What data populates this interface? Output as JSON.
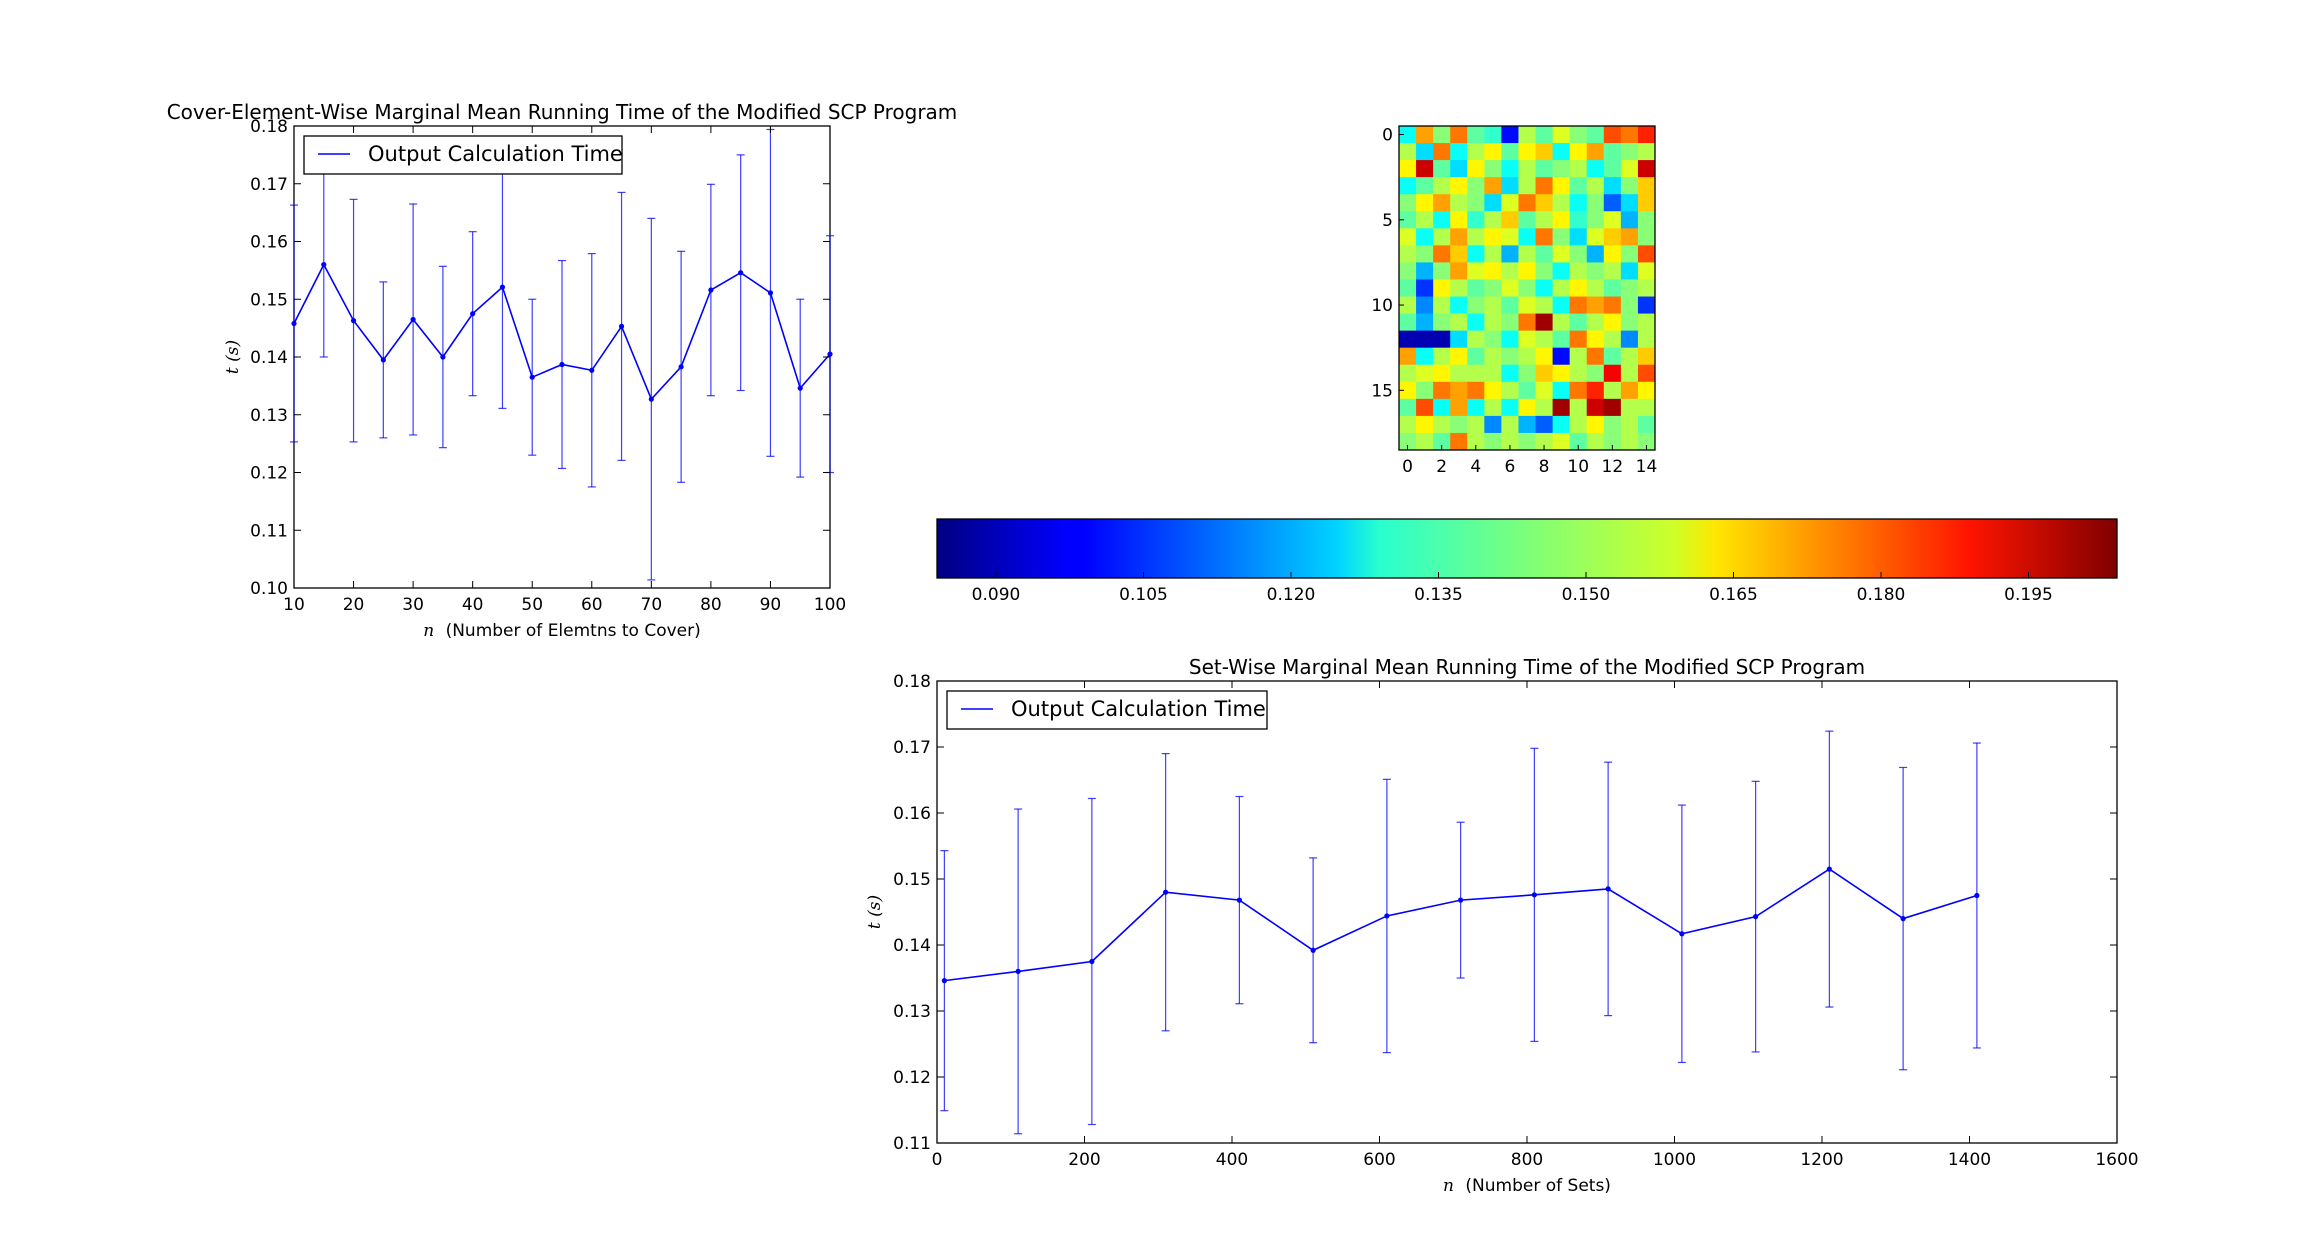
{
  "chart_data": [
    {
      "type": "line",
      "title": "Cover-Element-Wise Marginal Mean Running Time of the Modified SCP Program",
      "xlabel_var": "n",
      "xlabel": "(Number of Elemtns to Cover)",
      "ylabel": "t (s)",
      "xlim": [
        10,
        100
      ],
      "ylim": [
        0.1,
        0.18
      ],
      "xticks": [
        "10",
        "20",
        "30",
        "40",
        "50",
        "60",
        "70",
        "80",
        "90",
        "100"
      ],
      "yticks": [
        "0.10",
        "0.11",
        "0.12",
        "0.13",
        "0.14",
        "0.15",
        "0.16",
        "0.17",
        "0.18"
      ],
      "legend": "top-left",
      "series": [
        {
          "name": "Output Calculation Time",
          "color": "#0000ff",
          "x": [
            10,
            15,
            20,
            25,
            30,
            35,
            40,
            45,
            50,
            55,
            60,
            65,
            70,
            75,
            80,
            85,
            90,
            95,
            100
          ],
          "y": [
            0.1458,
            0.156,
            0.1463,
            0.1395,
            0.1465,
            0.14,
            0.1475,
            0.1521,
            0.1365,
            0.1387,
            0.1377,
            0.1453,
            0.1327,
            0.1383,
            0.1516,
            0.1546,
            0.1511,
            0.1346,
            0.1405
          ],
          "yerr": [
            0.0205,
            0.016,
            0.021,
            0.0135,
            0.02,
            0.0157,
            0.0142,
            0.021,
            0.0135,
            0.018,
            0.0202,
            0.0232,
            0.0313,
            0.02,
            0.0183,
            0.0204,
            0.0283,
            0.0154,
            0.0205
          ]
        }
      ]
    },
    {
      "type": "heatmap",
      "xticks": [
        "0",
        "2",
        "4",
        "6",
        "8",
        "10",
        "12",
        "14"
      ],
      "yticks": [
        "0",
        "5",
        "10",
        "15"
      ],
      "rows": 19,
      "cols": 15,
      "colormap": "jet",
      "vmin": 0.084,
      "vmax": 0.204,
      "colorbar_ticks": [
        "0.090",
        "0.105",
        "0.120",
        "0.135",
        "0.150",
        "0.165",
        "0.180",
        "0.195"
      ],
      "values": [
        [
          0.13,
          0.17,
          0.145,
          0.175,
          0.14,
          0.135,
          0.1,
          0.15,
          0.14,
          0.155,
          0.145,
          0.14,
          0.18,
          0.175,
          0.185
        ],
        [
          0.15,
          0.125,
          0.175,
          0.13,
          0.15,
          0.16,
          0.14,
          0.16,
          0.165,
          0.13,
          0.16,
          0.17,
          0.14,
          0.145,
          0.15
        ],
        [
          0.16,
          0.195,
          0.14,
          0.125,
          0.16,
          0.145,
          0.13,
          0.15,
          0.14,
          0.145,
          0.15,
          0.13,
          0.14,
          0.155,
          0.195
        ],
        [
          0.13,
          0.14,
          0.15,
          0.16,
          0.145,
          0.17,
          0.125,
          0.15,
          0.175,
          0.16,
          0.14,
          0.15,
          0.125,
          0.145,
          0.165
        ],
        [
          0.145,
          0.16,
          0.17,
          0.15,
          0.145,
          0.125,
          0.155,
          0.175,
          0.165,
          0.15,
          0.13,
          0.145,
          0.11,
          0.125,
          0.165
        ],
        [
          0.14,
          0.15,
          0.13,
          0.16,
          0.135,
          0.15,
          0.165,
          0.14,
          0.15,
          0.16,
          0.135,
          0.145,
          0.155,
          0.12,
          0.145
        ],
        [
          0.155,
          0.13,
          0.15,
          0.17,
          0.15,
          0.16,
          0.155,
          0.13,
          0.175,
          0.145,
          0.125,
          0.155,
          0.165,
          0.17,
          0.145
        ],
        [
          0.15,
          0.145,
          0.175,
          0.165,
          0.13,
          0.15,
          0.12,
          0.15,
          0.14,
          0.155,
          0.145,
          0.12,
          0.16,
          0.145,
          0.18
        ],
        [
          0.145,
          0.12,
          0.145,
          0.17,
          0.155,
          0.16,
          0.15,
          0.16,
          0.145,
          0.13,
          0.15,
          0.145,
          0.15,
          0.125,
          0.155
        ],
        [
          0.14,
          0.105,
          0.16,
          0.15,
          0.14,
          0.145,
          0.155,
          0.145,
          0.13,
          0.15,
          0.16,
          0.15,
          0.14,
          0.145,
          0.15
        ],
        [
          0.15,
          0.115,
          0.15,
          0.13,
          0.145,
          0.15,
          0.14,
          0.155,
          0.15,
          0.13,
          0.175,
          0.17,
          0.175,
          0.145,
          0.105
        ],
        [
          0.14,
          0.12,
          0.145,
          0.15,
          0.13,
          0.15,
          0.145,
          0.175,
          0.2,
          0.15,
          0.14,
          0.15,
          0.16,
          0.145,
          0.15
        ],
        [
          0.09,
          0.09,
          0.09,
          0.125,
          0.15,
          0.145,
          0.13,
          0.155,
          0.15,
          0.14,
          0.175,
          0.16,
          0.15,
          0.115,
          0.15
        ],
        [
          0.17,
          0.13,
          0.15,
          0.16,
          0.14,
          0.15,
          0.145,
          0.15,
          0.16,
          0.1,
          0.15,
          0.175,
          0.14,
          0.15,
          0.165
        ],
        [
          0.15,
          0.155,
          0.16,
          0.15,
          0.15,
          0.15,
          0.13,
          0.145,
          0.165,
          0.16,
          0.15,
          0.145,
          0.19,
          0.15,
          0.18
        ],
        [
          0.16,
          0.145,
          0.175,
          0.17,
          0.175,
          0.16,
          0.15,
          0.14,
          0.155,
          0.13,
          0.175,
          0.185,
          0.15,
          0.17,
          0.16
        ],
        [
          0.14,
          0.18,
          0.13,
          0.17,
          0.13,
          0.15,
          0.13,
          0.16,
          0.15,
          0.2,
          0.15,
          0.195,
          0.2,
          0.15,
          0.15
        ],
        [
          0.15,
          0.16,
          0.15,
          0.145,
          0.15,
          0.115,
          0.15,
          0.12,
          0.11,
          0.13,
          0.15,
          0.16,
          0.145,
          0.15,
          0.14
        ],
        [
          0.145,
          0.15,
          0.14,
          0.175,
          0.15,
          0.145,
          0.15,
          0.145,
          0.15,
          0.155,
          0.14,
          0.15,
          0.145,
          0.15,
          0.145
        ]
      ]
    },
    {
      "type": "line",
      "title": "Set-Wise Marginal Mean Running Time of the Modified SCP Program",
      "xlabel_var": "n",
      "xlabel": "(Number of Sets)",
      "ylabel": "t (s)",
      "xlim": [
        0,
        1600
      ],
      "ylim": [
        0.11,
        0.18
      ],
      "xticks": [
        "0",
        "200",
        "400",
        "600",
        "800",
        "1000",
        "1200",
        "1400",
        "1600"
      ],
      "yticks": [
        "0.11",
        "0.12",
        "0.13",
        "0.14",
        "0.15",
        "0.16",
        "0.17",
        "0.18"
      ],
      "legend": "top-left",
      "series": [
        {
          "name": "Output Calculation Time",
          "color": "#0000ff",
          "x": [
            10,
            110,
            210,
            310,
            410,
            510,
            610,
            710,
            810,
            910,
            1010,
            1110,
            1210,
            1310,
            1410
          ],
          "y": [
            0.1346,
            0.136,
            0.1375,
            0.148,
            0.1468,
            0.1392,
            0.1444,
            0.1468,
            0.1476,
            0.1485,
            0.1417,
            0.1443,
            0.1515,
            0.144,
            0.1475
          ],
          "yerr": [
            0.0197,
            0.0246,
            0.0247,
            0.021,
            0.0157,
            0.014,
            0.0207,
            0.0118,
            0.0222,
            0.0192,
            0.0195,
            0.0205,
            0.0209,
            0.0229,
            0.0231
          ]
        }
      ]
    }
  ]
}
